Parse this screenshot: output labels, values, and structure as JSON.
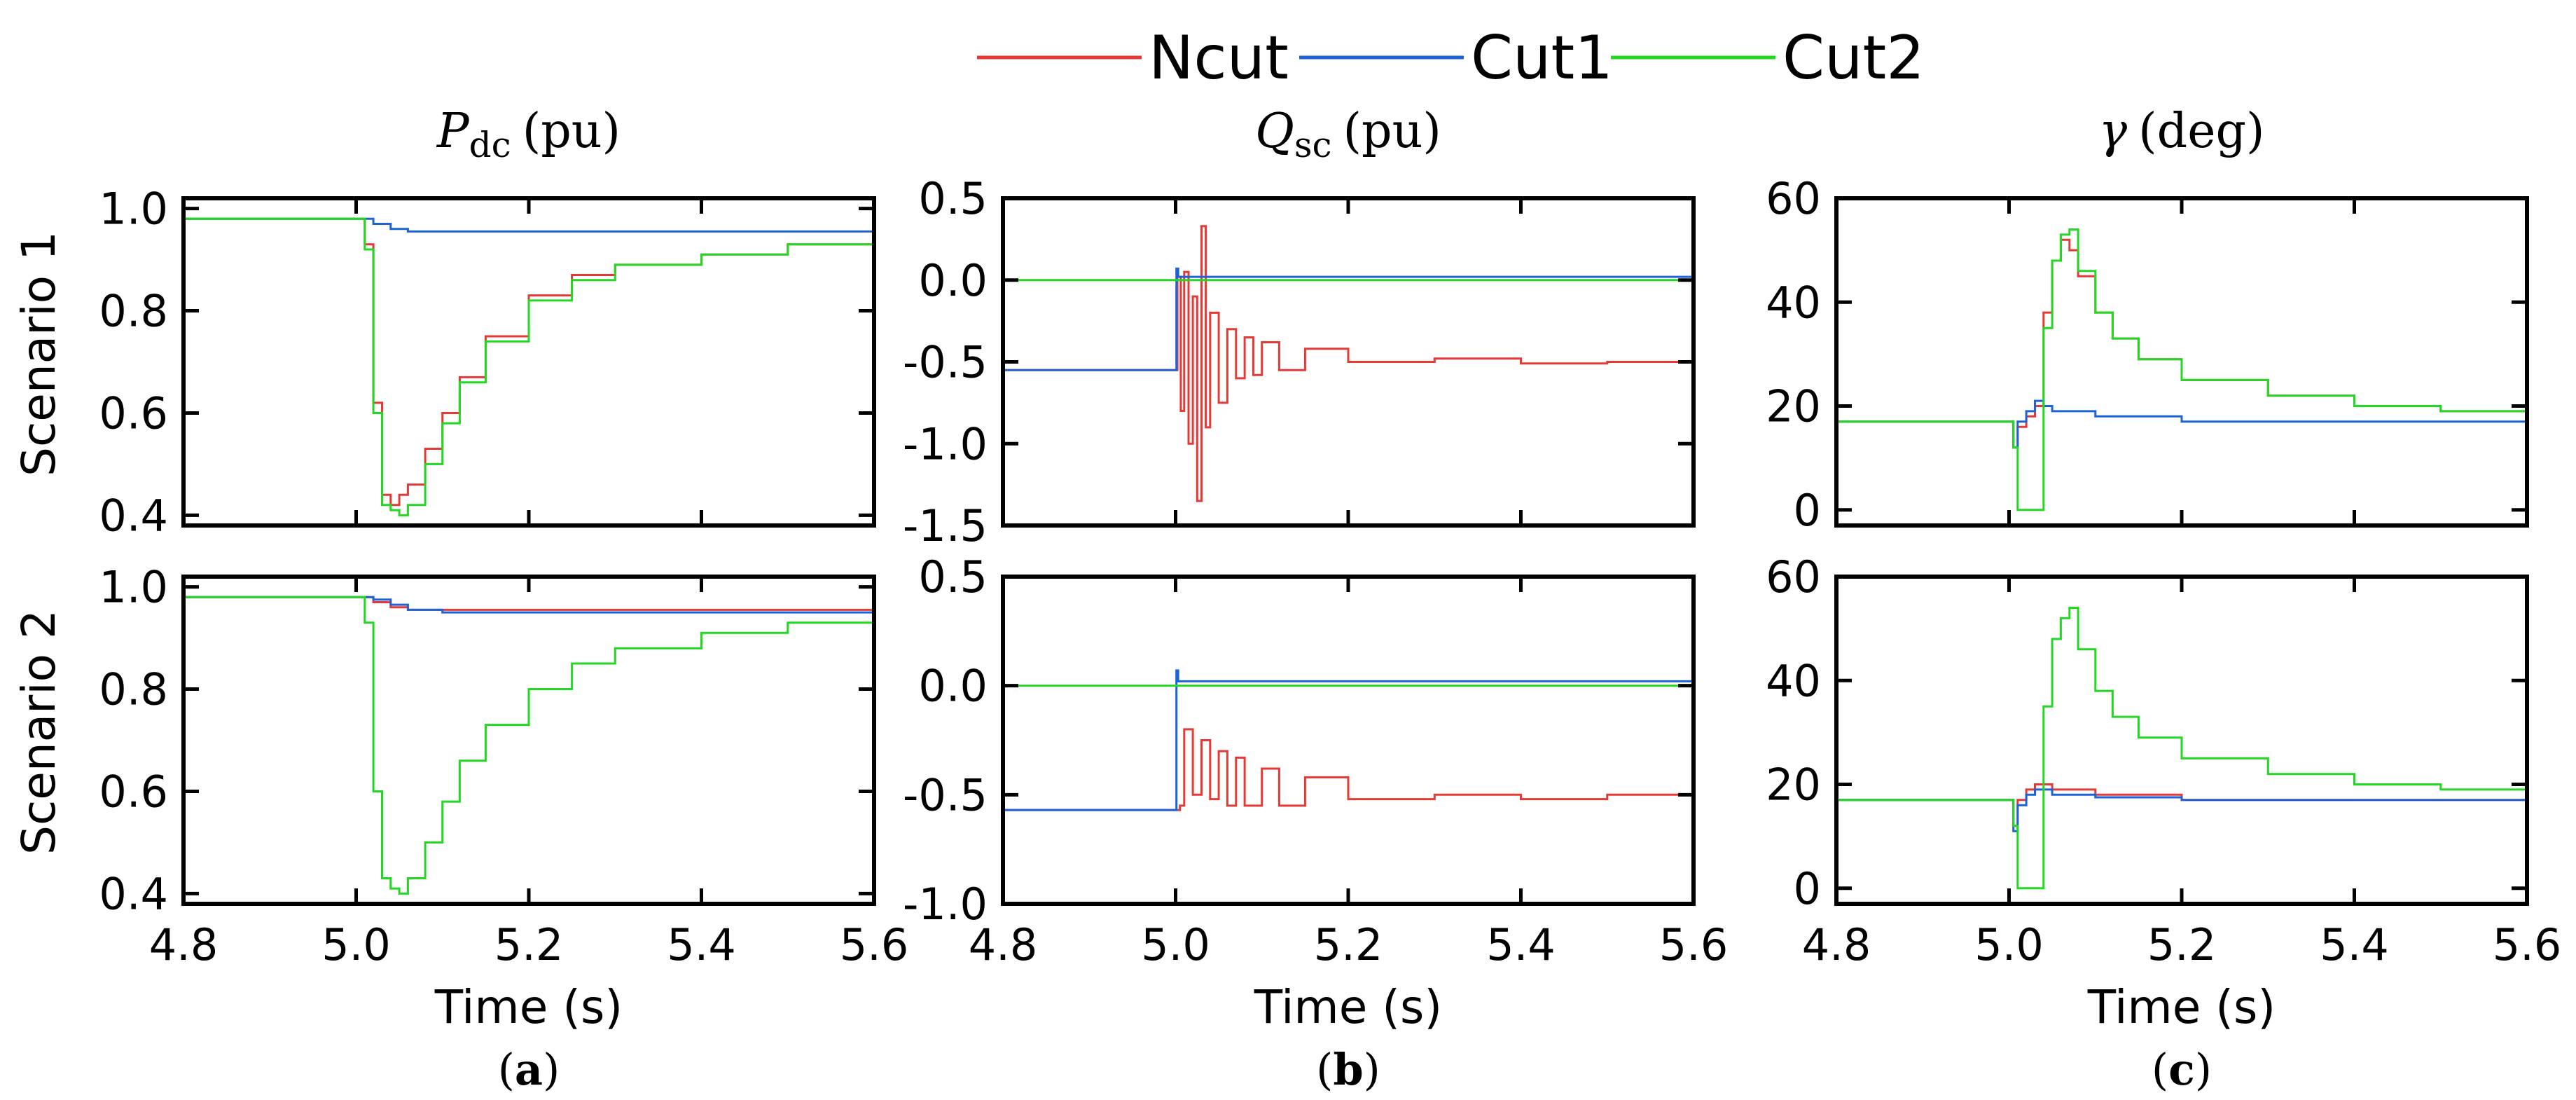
{
  "legend": [
    {
      "name": "Ncut",
      "color": "#e53935"
    },
    {
      "name": "Cut1",
      "color": "#1e63d6"
    },
    {
      "name": "Cut2",
      "color": "#22d822"
    }
  ],
  "rows": [
    {
      "label": "Scenario 1"
    },
    {
      "label": "Scenario 2"
    }
  ],
  "columns": [
    {
      "title_main": "P",
      "title_sub": "dc",
      "title_unit": "(pu)",
      "caption": "a"
    },
    {
      "title_main": "Q",
      "title_sub": "sc",
      "title_unit": "(pu)",
      "caption": "b"
    },
    {
      "title_main": "γ",
      "title_sub": "",
      "title_unit": "(deg)",
      "caption": "c"
    }
  ],
  "xlabel": "Time (s)",
  "x_ticks": [
    "4.8",
    "5.0",
    "5.2",
    "5.4",
    "5.6"
  ],
  "chart_data": [
    {
      "type": "line",
      "title": "Pdc (pu)",
      "row": "Scenario 1",
      "panel": "a",
      "xlim": [
        4.8,
        5.6
      ],
      "ylim": [
        0.38,
        1.02
      ],
      "y_ticks": [
        "0.4",
        "0.6",
        "0.8",
        "1.0"
      ],
      "y_tick_values": [
        0.4,
        0.6,
        0.8,
        1.0
      ],
      "series": [
        {
          "name": "Ncut",
          "x": [
            4.8,
            5.0,
            5.01,
            5.02,
            5.03,
            5.04,
            5.05,
            5.06,
            5.08,
            5.1,
            5.12,
            5.15,
            5.2,
            5.25,
            5.3,
            5.4,
            5.5,
            5.6
          ],
          "y": [
            0.98,
            0.98,
            0.93,
            0.62,
            0.44,
            0.42,
            0.44,
            0.46,
            0.53,
            0.6,
            0.67,
            0.75,
            0.83,
            0.87,
            0.89,
            0.91,
            0.93,
            0.945
          ]
        },
        {
          "name": "Cut1",
          "x": [
            4.8,
            5.0,
            5.02,
            5.04,
            5.06,
            5.1,
            5.2,
            5.3,
            5.4,
            5.5,
            5.6
          ],
          "y": [
            0.98,
            0.98,
            0.97,
            0.96,
            0.955,
            0.955,
            0.955,
            0.955,
            0.955,
            0.955,
            0.955
          ]
        },
        {
          "name": "Cut2",
          "x": [
            4.8,
            5.0,
            5.01,
            5.02,
            5.03,
            5.04,
            5.05,
            5.06,
            5.08,
            5.1,
            5.12,
            5.15,
            5.2,
            5.25,
            5.3,
            5.4,
            5.5,
            5.6
          ],
          "y": [
            0.98,
            0.98,
            0.92,
            0.6,
            0.42,
            0.41,
            0.4,
            0.42,
            0.5,
            0.58,
            0.66,
            0.74,
            0.82,
            0.86,
            0.89,
            0.91,
            0.93,
            0.945
          ]
        }
      ]
    },
    {
      "type": "line",
      "title": "Qsc (pu)",
      "row": "Scenario 1",
      "panel": "b",
      "xlim": [
        4.8,
        5.6
      ],
      "ylim": [
        -1.5,
        0.5
      ],
      "y_ticks": [
        "0.5",
        "0.0",
        "-0.5",
        "-1.0",
        "-1.5"
      ],
      "y_tick_values": [
        0.5,
        0.0,
        -0.5,
        -1.0,
        -1.5
      ],
      "series": [
        {
          "name": "Ncut",
          "x": [
            4.8,
            5.0,
            5.002,
            5.006,
            5.01,
            5.015,
            5.02,
            5.025,
            5.03,
            5.035,
            5.04,
            5.05,
            5.06,
            5.07,
            5.08,
            5.09,
            5.1,
            5.12,
            5.15,
            5.2,
            5.3,
            5.4,
            5.5,
            5.6
          ],
          "y": [
            -0.55,
            -0.55,
            0.02,
            -0.8,
            0.05,
            -1.0,
            -0.1,
            -1.35,
            0.33,
            -0.9,
            -0.2,
            -0.75,
            -0.3,
            -0.6,
            -0.35,
            -0.58,
            -0.38,
            -0.55,
            -0.42,
            -0.5,
            -0.48,
            -0.51,
            -0.5,
            -0.51
          ]
        },
        {
          "name": "Cut1",
          "x": [
            4.8,
            5.0,
            5.001,
            5.003,
            5.01,
            5.6
          ],
          "y": [
            -0.55,
            -0.55,
            0.07,
            0.02,
            0.02,
            0.02
          ]
        },
        {
          "name": "Cut2",
          "x": [
            4.8,
            5.6
          ],
          "y": [
            0.0,
            0.0
          ]
        }
      ]
    },
    {
      "type": "line",
      "title": "γ (deg)",
      "row": "Scenario 1",
      "panel": "c",
      "xlim": [
        4.8,
        5.6
      ],
      "ylim": [
        -3,
        60
      ],
      "y_ticks": [
        "0",
        "20",
        "40",
        "60"
      ],
      "y_tick_values": [
        0,
        20,
        40,
        60
      ],
      "series": [
        {
          "name": "Ncut",
          "x": [
            4.8,
            5.0,
            5.005,
            5.01,
            5.02,
            5.03,
            5.04,
            5.05,
            5.06,
            5.07,
            5.08,
            5.1,
            5.12,
            5.15,
            5.2,
            5.3,
            5.4,
            5.5,
            5.6
          ],
          "y": [
            17,
            17,
            12,
            16,
            18,
            20,
            38,
            48,
            52,
            50,
            45,
            38,
            33,
            29,
            25,
            22,
            20,
            19,
            18.5
          ]
        },
        {
          "name": "Cut1",
          "x": [
            4.8,
            5.0,
            5.005,
            5.01,
            5.02,
            5.03,
            5.04,
            5.05,
            5.1,
            5.2,
            5.3,
            5.4,
            5.5,
            5.6
          ],
          "y": [
            17,
            17,
            12,
            17,
            19,
            21,
            20,
            19,
            18,
            17,
            17,
            17,
            17,
            17
          ]
        },
        {
          "name": "Cut2",
          "x": [
            4.8,
            5.0,
            5.005,
            5.01,
            5.015,
            5.035,
            5.04,
            5.05,
            5.06,
            5.07,
            5.08,
            5.1,
            5.12,
            5.15,
            5.2,
            5.3,
            5.4,
            5.5,
            5.6
          ],
          "y": [
            17,
            17,
            12,
            0,
            0,
            0,
            35,
            48,
            53,
            54,
            46,
            38,
            33,
            29,
            25,
            22,
            20,
            19,
            18.5
          ]
        }
      ]
    },
    {
      "type": "line",
      "title": "Pdc (pu)",
      "row": "Scenario 2",
      "panel": "a",
      "xlim": [
        4.8,
        5.6
      ],
      "ylim": [
        0.38,
        1.02
      ],
      "y_ticks": [
        "0.4",
        "0.6",
        "0.8",
        "1.0"
      ],
      "y_tick_values": [
        0.4,
        0.6,
        0.8,
        1.0
      ],
      "series": [
        {
          "name": "Ncut",
          "x": [
            4.8,
            5.0,
            5.02,
            5.04,
            5.06,
            5.1,
            5.2,
            5.3,
            5.4,
            5.5,
            5.6
          ],
          "y": [
            0.98,
            0.98,
            0.97,
            0.96,
            0.955,
            0.955,
            0.955,
            0.955,
            0.955,
            0.955,
            0.955
          ]
        },
        {
          "name": "Cut1",
          "x": [
            4.8,
            5.0,
            5.02,
            5.04,
            5.06,
            5.1,
            5.2,
            5.3,
            5.4,
            5.5,
            5.6
          ],
          "y": [
            0.98,
            0.98,
            0.975,
            0.965,
            0.955,
            0.95,
            0.95,
            0.95,
            0.95,
            0.95,
            0.95
          ]
        },
        {
          "name": "Cut2",
          "x": [
            4.8,
            5.0,
            5.01,
            5.02,
            5.03,
            5.04,
            5.05,
            5.06,
            5.08,
            5.1,
            5.12,
            5.15,
            5.2,
            5.25,
            5.3,
            5.4,
            5.5,
            5.6
          ],
          "y": [
            0.98,
            0.98,
            0.93,
            0.6,
            0.43,
            0.41,
            0.4,
            0.43,
            0.5,
            0.58,
            0.66,
            0.73,
            0.8,
            0.85,
            0.88,
            0.91,
            0.93,
            0.945
          ]
        }
      ]
    },
    {
      "type": "line",
      "title": "Qsc (pu)",
      "row": "Scenario 2",
      "panel": "b",
      "xlim": [
        4.8,
        5.6
      ],
      "ylim": [
        -1.0,
        0.5
      ],
      "y_ticks": [
        "0.5",
        "0.0",
        "-0.5",
        "-1.0"
      ],
      "y_tick_values": [
        0.5,
        0.0,
        -0.5,
        -1.0
      ],
      "series": [
        {
          "name": "Ncut",
          "x": [
            4.8,
            5.0,
            5.005,
            5.01,
            5.02,
            5.03,
            5.04,
            5.05,
            5.06,
            5.07,
            5.08,
            5.1,
            5.12,
            5.15,
            5.2,
            5.3,
            5.4,
            5.5,
            5.6
          ],
          "y": [
            -0.57,
            -0.57,
            -0.55,
            -0.2,
            -0.5,
            -0.25,
            -0.52,
            -0.3,
            -0.55,
            -0.33,
            -0.55,
            -0.38,
            -0.55,
            -0.42,
            -0.52,
            -0.5,
            -0.52,
            -0.5,
            -0.51
          ]
        },
        {
          "name": "Cut1",
          "x": [
            4.8,
            5.0,
            5.001,
            5.003,
            5.01,
            5.6
          ],
          "y": [
            -0.57,
            -0.57,
            0.07,
            0.02,
            0.02,
            0.02
          ]
        },
        {
          "name": "Cut2",
          "x": [
            4.8,
            5.6
          ],
          "y": [
            0.0,
            0.0
          ]
        }
      ]
    },
    {
      "type": "line",
      "title": "γ (deg)",
      "row": "Scenario 2",
      "panel": "c",
      "xlim": [
        4.8,
        5.6
      ],
      "ylim": [
        -3,
        60
      ],
      "y_ticks": [
        "0",
        "20",
        "40",
        "60"
      ],
      "y_tick_values": [
        0,
        20,
        40,
        60
      ],
      "series": [
        {
          "name": "Ncut",
          "x": [
            4.8,
            5.0,
            5.005,
            5.01,
            5.02,
            5.03,
            5.04,
            5.05,
            5.1,
            5.2,
            5.3,
            5.4,
            5.5,
            5.6
          ],
          "y": [
            17,
            17,
            12,
            17,
            19,
            20,
            20,
            19,
            18,
            17,
            17,
            17,
            17,
            17
          ]
        },
        {
          "name": "Cut1",
          "x": [
            4.8,
            5.0,
            5.005,
            5.01,
            5.02,
            5.03,
            5.04,
            5.05,
            5.1,
            5.2,
            5.3,
            5.4,
            5.5,
            5.6
          ],
          "y": [
            17,
            17,
            11,
            16,
            18,
            19,
            19,
            18,
            17.5,
            17,
            17,
            17,
            17,
            17
          ]
        },
        {
          "name": "Cut2",
          "x": [
            4.8,
            5.0,
            5.005,
            5.01,
            5.015,
            5.035,
            5.04,
            5.05,
            5.06,
            5.07,
            5.08,
            5.1,
            5.12,
            5.15,
            5.2,
            5.3,
            5.4,
            5.5,
            5.6
          ],
          "y": [
            17,
            17,
            12,
            0,
            0,
            0,
            35,
            48,
            52,
            54,
            46,
            38,
            33,
            29,
            25,
            22,
            20,
            19,
            18.5
          ]
        }
      ]
    }
  ]
}
